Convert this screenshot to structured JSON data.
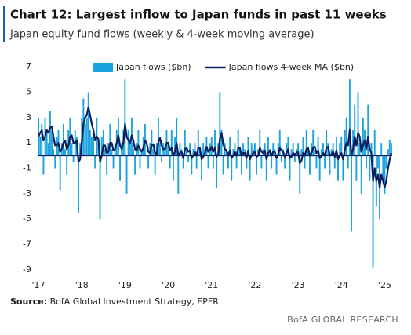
{
  "chart_data": {
    "type": "bar_line",
    "title": "Chart 12: Largest inflow to Japan funds in past 11 weeks",
    "subtitle": "Japan equity fund flows (weekly & 4-week moving average)",
    "source_label": "Source:",
    "source": "BofA Global Investment Strategy, EPFR",
    "credit": "BofA GLOBAL RESEARCH",
    "legend": "top",
    "categories": [
      "'17",
      null,
      null,
      null,
      null,
      null,
      null,
      null,
      null,
      null,
      null,
      null,
      null,
      null,
      null,
      null,
      null,
      null,
      null,
      null,
      null,
      null,
      null,
      null,
      null,
      null,
      "'18",
      null,
      null,
      null,
      null,
      null,
      null,
      null,
      null,
      null,
      null,
      null,
      null,
      null,
      null,
      null,
      null,
      null,
      null,
      null,
      null,
      null,
      null,
      null,
      null,
      null,
      "'19",
      null,
      null,
      null,
      null,
      null,
      null,
      null,
      null,
      null,
      null,
      null,
      null,
      null,
      null,
      null,
      null,
      null,
      null,
      null,
      null,
      null,
      null,
      null,
      null,
      null,
      "'20",
      null,
      null,
      null,
      null,
      null,
      null,
      null,
      null,
      null,
      null,
      null,
      null,
      null,
      null,
      null,
      null,
      null,
      null,
      null,
      null,
      null,
      null,
      null,
      null,
      null,
      "'21",
      null,
      null,
      null,
      null,
      null,
      null,
      null,
      null,
      null,
      null,
      null,
      null,
      null,
      null,
      null,
      null,
      null,
      null,
      null,
      null,
      null,
      null,
      null,
      null,
      null,
      "'22",
      null,
      null,
      null,
      null,
      null,
      null,
      null,
      null,
      null,
      null,
      null,
      null,
      null,
      null,
      null,
      null,
      null,
      null,
      null,
      null,
      null,
      null,
      null,
      null,
      null,
      "'23",
      null,
      null,
      null,
      null,
      null,
      null,
      null,
      null,
      null,
      null,
      null,
      null,
      null,
      null,
      null,
      null,
      null,
      null,
      null,
      null,
      null,
      null,
      null,
      null,
      null,
      "'24",
      null,
      null,
      null,
      null,
      null,
      null,
      null,
      null,
      null,
      null,
      null,
      null,
      null,
      null,
      null,
      null,
      null,
      null,
      null,
      null,
      null,
      null,
      null,
      null,
      null,
      "'25",
      null,
      null,
      null,
      null
    ],
    "series": [
      {
        "name": "Japan flows ($bn)",
        "kind": "bar",
        "color": "#1aa3de",
        "values": [
          3,
          1.5,
          2.5,
          -1.5,
          3,
          2,
          1,
          3.5,
          2,
          0.5,
          -1,
          1.5,
          2,
          -2.7,
          1,
          2.5,
          0.5,
          -1.5,
          2,
          3,
          1,
          -0.5,
          2,
          1.5,
          -4.5,
          1,
          3,
          4.5,
          2.5,
          3,
          5,
          2,
          1.5,
          2,
          -1,
          3,
          1,
          -5,
          1.5,
          2,
          0.5,
          -1.5,
          1,
          2.5,
          0.5,
          -1,
          1,
          2,
          3,
          -2,
          1,
          2,
          6,
          -3,
          2,
          1,
          3,
          0.5,
          -1.5,
          1,
          2,
          -1,
          0.5,
          1.5,
          2.5,
          0,
          -1,
          1,
          2,
          0.5,
          -1.5,
          1,
          3,
          1,
          -0.5,
          1,
          0.5,
          2,
          1,
          -1,
          2,
          -2,
          1.5,
          3,
          -3,
          1,
          0.5,
          -1,
          2,
          0.5,
          -0.5,
          1,
          -1.5,
          0.5,
          1,
          -1,
          2,
          0.5,
          -2,
          1,
          0.5,
          1.5,
          -1,
          1,
          1.5,
          -1,
          2,
          -2.5,
          1,
          5,
          2,
          -1.5,
          1,
          0.5,
          -1,
          1.5,
          -2,
          0.5,
          1,
          -1,
          2,
          0.5,
          -1.5,
          1,
          0.5,
          -1,
          1.5,
          -2,
          1,
          0.5,
          1,
          -1.5,
          0.5,
          2,
          -1,
          0.5,
          1,
          -2,
          1.5,
          0.5,
          -1,
          1,
          0.5,
          -1.5,
          1,
          2,
          -0.5,
          0.5,
          -1,
          1,
          1.5,
          -2,
          0.5,
          1,
          -0.5,
          0.5,
          1,
          -3,
          0.5,
          1.5,
          -1,
          2,
          0.5,
          -1.5,
          1,
          2,
          0.5,
          -1,
          1.5,
          -2,
          0.5,
          1,
          -1,
          2,
          1,
          -1.5,
          0.5,
          1,
          -1,
          1.5,
          -2,
          1,
          1.5,
          -2,
          2,
          3,
          -1,
          6,
          -6,
          2,
          4,
          -2,
          5,
          1,
          -3,
          3,
          2,
          -1,
          4,
          -2,
          1,
          -8.8,
          2,
          -4,
          -1,
          -5,
          1,
          -2,
          -3,
          -1,
          0.5,
          1.2,
          1
        ]
      },
      {
        "name": "Japan flows 4-week MA ($bn)",
        "kind": "line",
        "color": "#0b1f5e",
        "values": [
          1.5,
          1.8,
          2,
          1.2,
          1.5,
          2,
          1.8,
          2.2,
          2.3,
          1.5,
          0.8,
          0.8,
          1,
          0.3,
          0.5,
          1,
          1.2,
          0.5,
          0.8,
          1.5,
          1.6,
          1,
          1,
          1.2,
          -0.5,
          -0.3,
          1,
          2.5,
          3,
          3.2,
          3.8,
          3.2,
          2.5,
          2,
          1.2,
          1.5,
          1.3,
          -0.5,
          0,
          0.8,
          0.8,
          0.2,
          0.3,
          1,
          1,
          0.4,
          0.5,
          1,
          1.6,
          0.8,
          0.5,
          1,
          2.5,
          1.5,
          1.2,
          1,
          1.6,
          1.2,
          0.5,
          0.4,
          0.8,
          0.5,
          0.3,
          0.6,
          1.2,
          1,
          0.3,
          0.2,
          0.8,
          0.9,
          0.2,
          0.1,
          1,
          1.4,
          0.8,
          0.5,
          0.5,
          1,
          1,
          0.4,
          0.6,
          0,
          0.3,
          1,
          0,
          0.2,
          0.3,
          -0.2,
          0.5,
          0.6,
          0.3,
          0.4,
          -0.2,
          0,
          0.3,
          0,
          0.6,
          0.6,
          -0.3,
          -0.1,
          0.2,
          0.7,
          0.3,
          0.4,
          0.7,
          0.3,
          0.6,
          -0.1,
          0.1,
          1.3,
          1.8,
          0.9,
          0.5,
          0.4,
          0,
          0.4,
          -0.2,
          0,
          0.3,
          0,
          0.6,
          0.6,
          0,
          0.2,
          0.2,
          -0.2,
          0.4,
          -0.3,
          0,
          0.2,
          0.3,
          -0.1,
          0,
          0.6,
          0.3,
          0.2,
          0.4,
          -0.3,
          0.2,
          0.4,
          0,
          0.3,
          0.3,
          -0.2,
          0.1,
          0.6,
          0.4,
          0.3,
          -0.1,
          0.2,
          0.5,
          -0.2,
          -0.1,
          0.2,
          0.1,
          0.2,
          0.3,
          -0.6,
          -0.4,
          0.2,
          0,
          0.5,
          0.6,
          0,
          0.2,
          0.6,
          0.7,
          0.2,
          0.4,
          -0.2,
          -0.1,
          0.2,
          0,
          0.6,
          0.7,
          0,
          0.1,
          0.3,
          -0.1,
          0.4,
          -0.3,
          0,
          0.2,
          -0.3,
          0.4,
          1,
          0.8,
          2,
          0,
          0.5,
          1.5,
          0.8,
          1.8,
          1.5,
          0.3,
          0.8,
          1.2,
          0.5,
          1.5,
          0.5,
          0.2,
          -2,
          -1,
          -2,
          -1.5,
          -2.5,
          -1.5,
          -2,
          -2.5,
          -2,
          -1,
          -0.3,
          0.2
        ]
      }
    ],
    "ylim": [
      -9.5,
      7.5
    ],
    "yticks": [
      -9,
      -7,
      -5,
      -3,
      -1,
      1,
      3,
      5,
      7
    ],
    "grid": false
  }
}
